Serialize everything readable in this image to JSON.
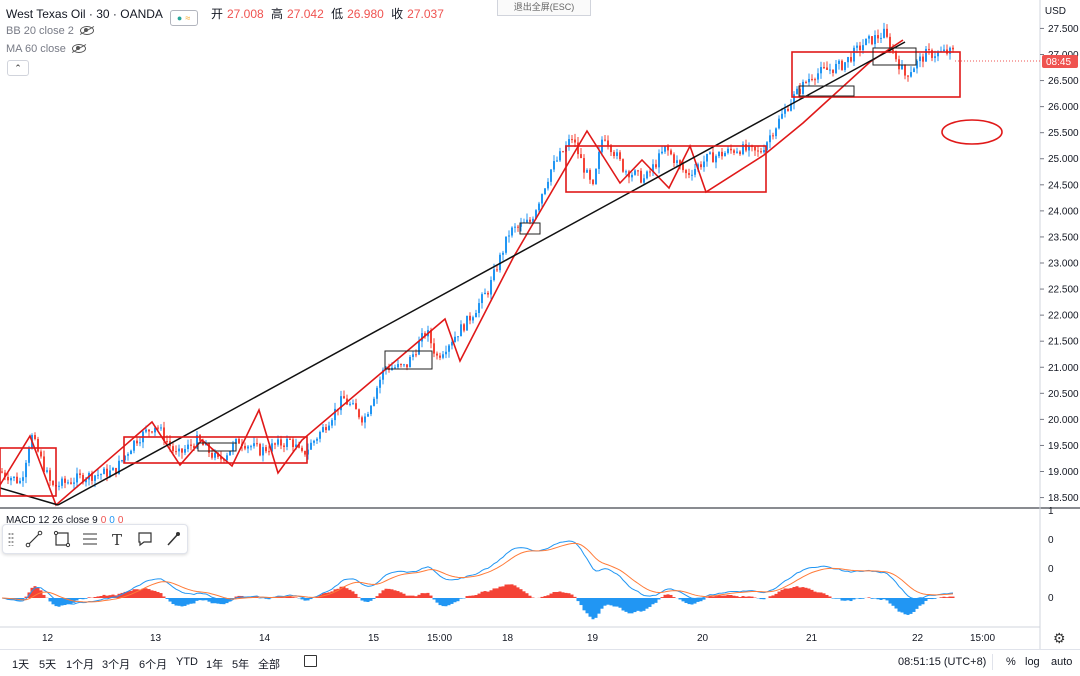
{
  "legend": {
    "symbol": "West Texas Oil · 30 · OANDA",
    "ohlc": [
      {
        "label": "开",
        "value": "27.008"
      },
      {
        "label": "高",
        "value": "27.042"
      },
      {
        "label": "低",
        "value": "26.980"
      },
      {
        "label": "收",
        "value": "27.037"
      }
    ],
    "indicators": [
      "BB 20 close 2",
      "MA 60 close"
    ],
    "macd": {
      "label": "MACD 12 26 close 9",
      "values": [
        "0",
        "0",
        "0"
      ]
    }
  },
  "exit_fullscreen": "退出全屏(ESC)",
  "currency": "USD",
  "price_label": "08:45",
  "colors": {
    "up": "#2196f3",
    "down": "#f44336",
    "drawing": "#e01919",
    "trend": "#111111",
    "macd_line": "#2196f3",
    "signal_line": "#ff7b39",
    "hist_up": "#f44336",
    "hist_down": "#2196f3"
  },
  "price_axis": {
    "ticks": [
      "27.500",
      "27.000",
      "26.500",
      "26.000",
      "25.500",
      "25.000",
      "24.500",
      "24.000",
      "23.500",
      "23.000",
      "22.500",
      "22.000",
      "21.500",
      "21.000",
      "20.500",
      "20.000",
      "19.500",
      "19.000",
      "18.500"
    ]
  },
  "macd_axis": {
    "ticks": [
      "1",
      "0",
      "0",
      "0"
    ]
  },
  "time_axis": {
    "ticks": [
      "12",
      "13",
      "14",
      "15",
      "15:00",
      "18",
      "19",
      "20",
      "21",
      "22",
      "15:00"
    ]
  },
  "toolbar": {
    "tools": [
      "line-tool-icon",
      "rectangle-tool-icon",
      "parallel-channel-icon",
      "text-tool-icon",
      "callout-tool-icon",
      "brush-tool-icon"
    ]
  },
  "bottom": {
    "ranges": [
      "1天",
      "5天",
      "1个月",
      "3个月",
      "6个月",
      "YTD",
      "1年",
      "5年",
      "全部"
    ],
    "clock": "08:51:15 (UTC+8)",
    "modes": [
      "%",
      "log",
      "auto"
    ]
  },
  "chart_data": {
    "type": "candlestick",
    "symbol": "West Texas Oil",
    "interval": "30",
    "ylim": [
      18.3,
      27.7
    ],
    "y_unit": "USD",
    "x_labels": [
      "12",
      "13",
      "14",
      "15",
      "15:00",
      "18",
      "19",
      "20",
      "21",
      "22",
      "15:00"
    ],
    "price_path": [
      [
        0,
        19.0
      ],
      [
        0.02,
        18.8
      ],
      [
        0.03,
        19.7
      ],
      [
        0.04,
        19.2
      ],
      [
        0.05,
        18.7
      ],
      [
        0.08,
        18.9
      ],
      [
        0.11,
        19.0
      ],
      [
        0.13,
        19.6
      ],
      [
        0.15,
        19.9
      ],
      [
        0.17,
        19.3
      ],
      [
        0.19,
        19.6
      ],
      [
        0.21,
        19.2
      ],
      [
        0.23,
        19.6
      ],
      [
        0.25,
        19.4
      ],
      [
        0.28,
        19.6
      ],
      [
        0.29,
        19.3
      ],
      [
        0.31,
        19.8
      ],
      [
        0.33,
        20.4
      ],
      [
        0.35,
        20.0
      ],
      [
        0.37,
        21.0
      ],
      [
        0.39,
        21.0
      ],
      [
        0.41,
        21.7
      ],
      [
        0.42,
        21.2
      ],
      [
        0.45,
        21.9
      ],
      [
        0.47,
        22.5
      ],
      [
        0.49,
        23.6
      ],
      [
        0.51,
        23.8
      ],
      [
        0.53,
        24.8
      ],
      [
        0.55,
        25.4
      ],
      [
        0.57,
        24.4
      ],
      [
        0.58,
        25.5
      ],
      [
        0.6,
        24.8
      ],
      [
        0.62,
        24.6
      ],
      [
        0.64,
        25.2
      ],
      [
        0.66,
        24.7
      ],
      [
        0.68,
        25.0
      ],
      [
        0.71,
        25.2
      ],
      [
        0.73,
        25.1
      ],
      [
        0.76,
        26.1
      ],
      [
        0.78,
        26.6
      ],
      [
        0.81,
        26.8
      ],
      [
        0.83,
        27.2
      ],
      [
        0.85,
        27.4
      ],
      [
        0.87,
        26.6
      ],
      [
        0.89,
        27.0
      ],
      [
        0.91,
        27.04
      ]
    ]
  }
}
